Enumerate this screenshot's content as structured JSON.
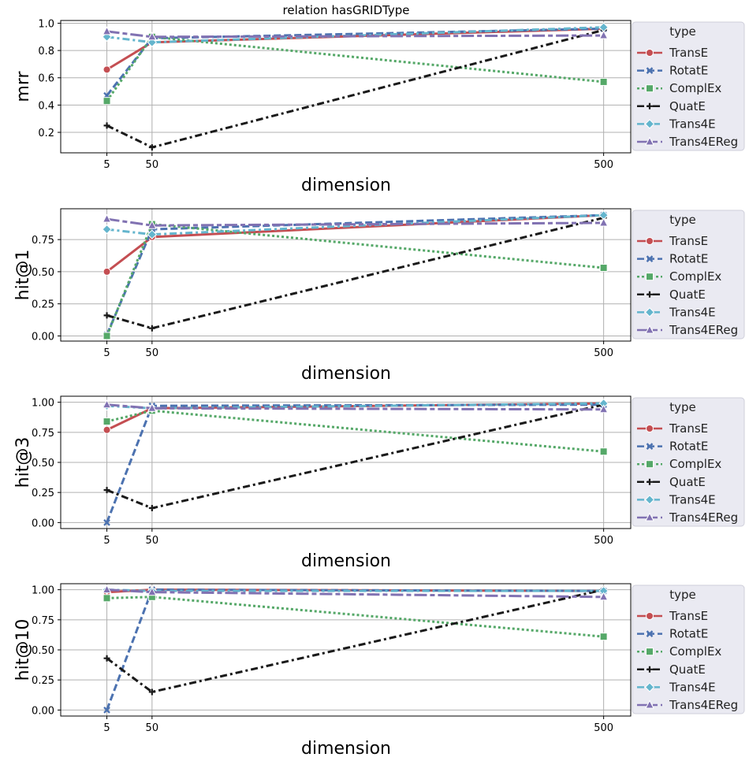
{
  "title": "relation hasGRIDType",
  "colors": {
    "TransE": "#c44e52",
    "RotatE": "#4c72b0",
    "ComplEx": "#55a868",
    "QuatE": "#1a1a1a",
    "Trans4E": "#64b5cd",
    "Trans4EReg": "#8172b2",
    "legend_bg": "#eaeaf2",
    "grid": "#b0b0b0"
  },
  "legend": {
    "title": "type",
    "entries": [
      "TransE",
      "RotatE",
      "ComplEx",
      "QuatE",
      "Trans4E",
      "Trans4EReg"
    ]
  },
  "chart_data": [
    {
      "type": "line",
      "title": "relation hasGRIDType",
      "xlabel": "dimension",
      "ylabel": "mrr",
      "x": [
        5,
        50,
        500
      ],
      "xlim": [
        -41,
        527
      ],
      "ylim": [
        0.05,
        1.02
      ],
      "yticks": [
        0.2,
        0.4,
        0.6,
        0.8,
        1.0
      ],
      "ytick_labels": [
        "0.2",
        "0.4",
        "0.6",
        "0.8",
        "1.0"
      ],
      "series": [
        {
          "name": "TransE",
          "values": [
            0.66,
            0.86,
            0.96
          ]
        },
        {
          "name": "RotatE",
          "values": [
            0.47,
            0.89,
            0.96
          ]
        },
        {
          "name": "ComplEx",
          "values": [
            0.43,
            0.9,
            0.57
          ]
        },
        {
          "name": "QuatE",
          "values": [
            0.25,
            0.09,
            0.95
          ]
        },
        {
          "name": "Trans4E",
          "values": [
            0.9,
            0.86,
            0.97
          ]
        },
        {
          "name": "Trans4EReg",
          "values": [
            0.94,
            0.9,
            0.91
          ]
        }
      ]
    },
    {
      "type": "line",
      "xlabel": "dimension",
      "ylabel": "hit@1",
      "x": [
        5,
        50,
        500
      ],
      "xlim": [
        -41,
        527
      ],
      "ylim": [
        -0.04,
        0.99
      ],
      "yticks": [
        0.0,
        0.25,
        0.5,
        0.75
      ],
      "ytick_labels": [
        "0.00",
        "0.25",
        "0.50",
        "0.75"
      ],
      "series": [
        {
          "name": "TransE",
          "values": [
            0.5,
            0.77,
            0.94
          ]
        },
        {
          "name": "RotatE",
          "values": [
            0.01,
            0.83,
            0.94
          ]
        },
        {
          "name": "ComplEx",
          "values": [
            0.0,
            0.87,
            0.53
          ]
        },
        {
          "name": "QuatE",
          "values": [
            0.16,
            0.06,
            0.92
          ]
        },
        {
          "name": "Trans4E",
          "values": [
            0.83,
            0.79,
            0.94
          ]
        },
        {
          "name": "Trans4EReg",
          "values": [
            0.91,
            0.86,
            0.88
          ]
        }
      ]
    },
    {
      "type": "line",
      "xlabel": "dimension",
      "ylabel": "hit@3",
      "x": [
        5,
        50,
        500
      ],
      "xlim": [
        -41,
        527
      ],
      "ylim": [
        -0.05,
        1.05
      ],
      "yticks": [
        0.0,
        0.25,
        0.5,
        0.75,
        1.0
      ],
      "ytick_labels": [
        "0.00",
        "0.25",
        "0.50",
        "0.75",
        "1.00"
      ],
      "series": [
        {
          "name": "TransE",
          "values": [
            0.77,
            0.95,
            0.99
          ]
        },
        {
          "name": "RotatE",
          "values": [
            0.0,
            0.97,
            0.98
          ]
        },
        {
          "name": "ComplEx",
          "values": [
            0.84,
            0.93,
            0.59
          ]
        },
        {
          "name": "QuatE",
          "values": [
            0.27,
            0.12,
            0.98
          ]
        },
        {
          "name": "Trans4E",
          "values": [
            0.97,
            0.95,
            0.99
          ]
        },
        {
          "name": "Trans4EReg",
          "values": [
            0.98,
            0.95,
            0.94
          ]
        }
      ]
    },
    {
      "type": "line",
      "xlabel": "dimension",
      "ylabel": "hit@10",
      "x": [
        5,
        50,
        500
      ],
      "xlim": [
        -41,
        527
      ],
      "ylim": [
        -0.05,
        1.05
      ],
      "yticks": [
        0.0,
        0.25,
        0.5,
        0.75,
        1.0
      ],
      "ytick_labels": [
        "0.00",
        "0.25",
        "0.50",
        "0.75",
        "1.00"
      ],
      "series": [
        {
          "name": "TransE",
          "values": [
            0.98,
            1.0,
            0.99
          ]
        },
        {
          "name": "RotatE",
          "values": [
            0.0,
            1.0,
            0.99
          ]
        },
        {
          "name": "ComplEx",
          "values": [
            0.93,
            0.94,
            0.61
          ]
        },
        {
          "name": "QuatE",
          "values": [
            0.43,
            0.15,
            1.0
          ]
        },
        {
          "name": "Trans4E",
          "values": [
            1.0,
            0.99,
            0.99
          ]
        },
        {
          "name": "Trans4EReg",
          "values": [
            1.0,
            0.98,
            0.94
          ]
        }
      ]
    }
  ]
}
